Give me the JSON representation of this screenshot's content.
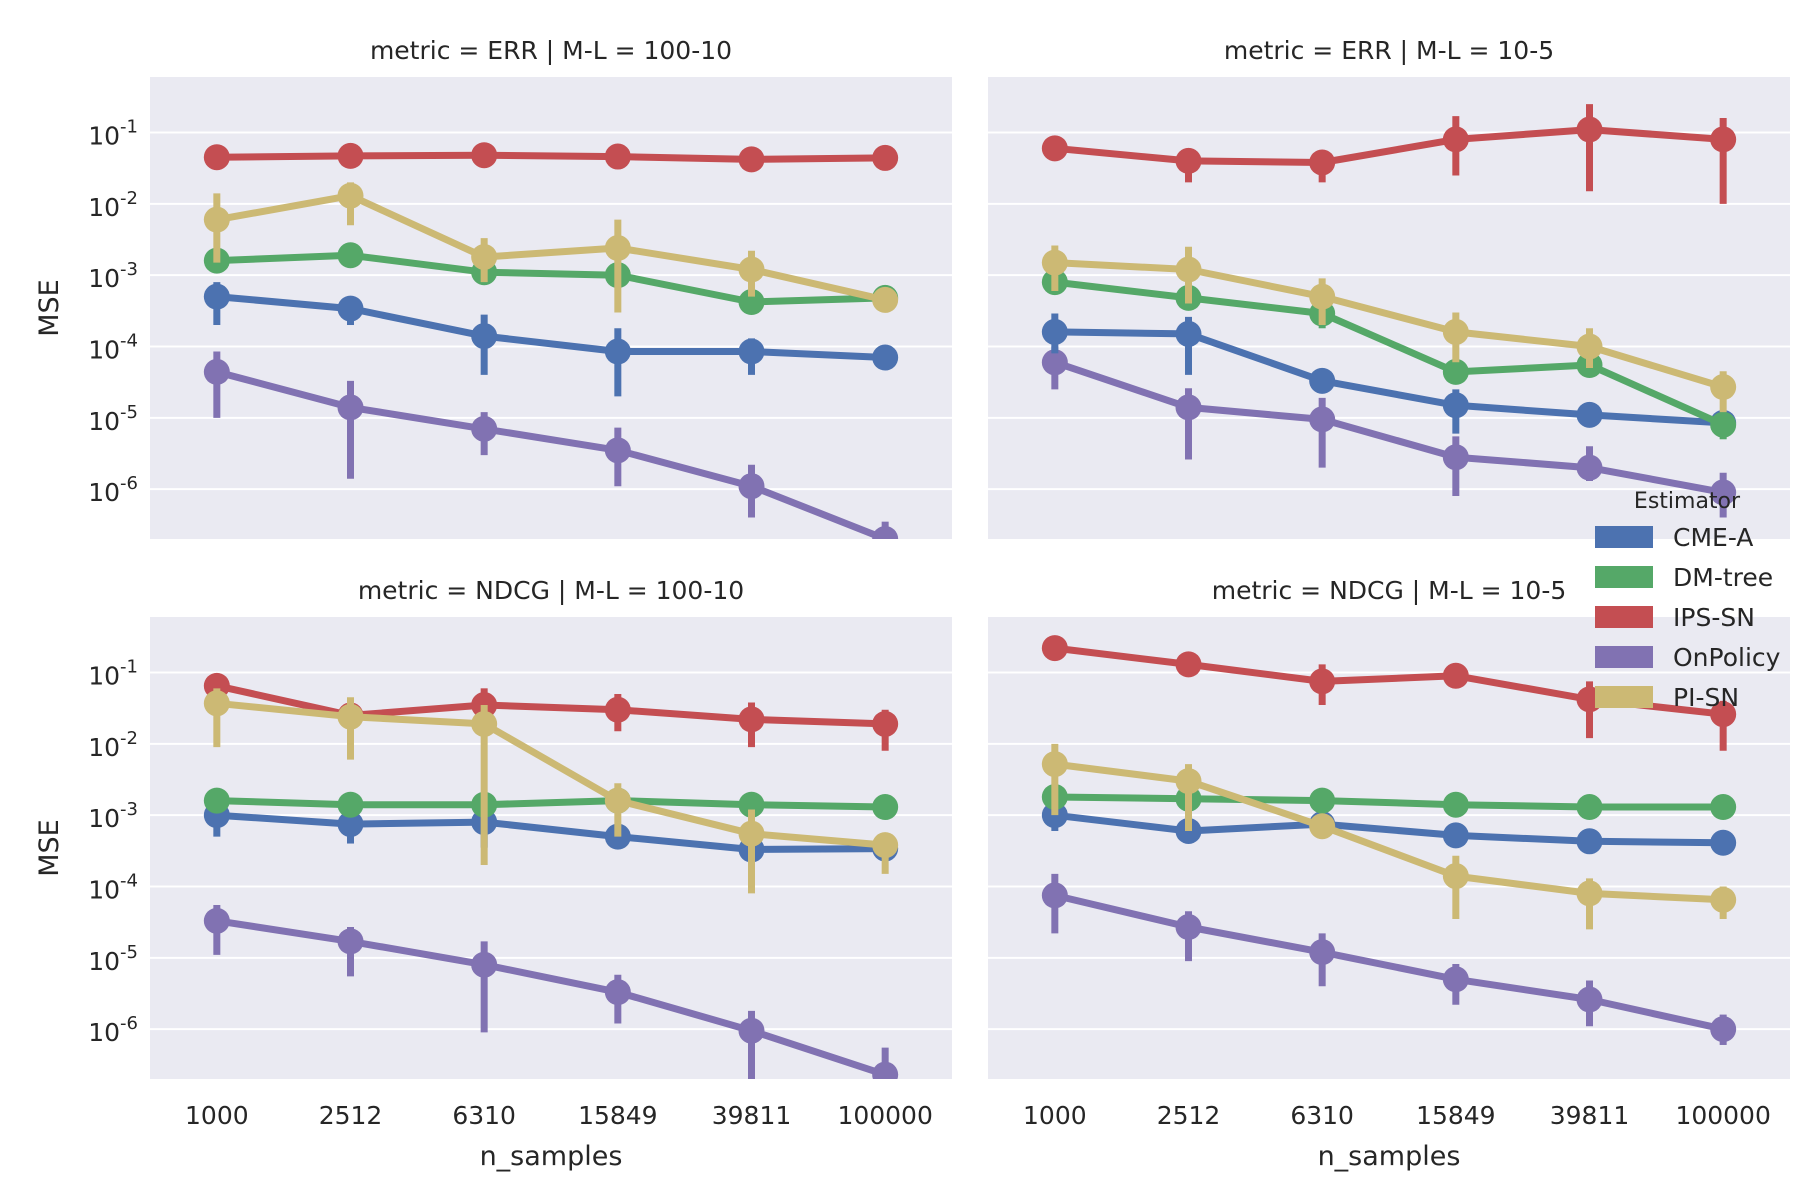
{
  "figure": {
    "ylabel": "MSE",
    "xlabel": "n_samples"
  },
  "legend": {
    "title": "Estimator",
    "entries": [
      {
        "name": "CME-A",
        "color": "#4c72b0"
      },
      {
        "name": "DM-tree",
        "color": "#55a868"
      },
      {
        "name": "IPS-SN",
        "color": "#c44e52"
      },
      {
        "name": "OnPolicy",
        "color": "#8172b2"
      },
      {
        "name": "PI-SN",
        "color": "#ccb974"
      }
    ]
  },
  "chart_data": [
    {
      "type": "line",
      "title": "metric = ERR | M-L = 100-10",
      "categories": [
        "1000",
        "2512",
        "6310",
        "15849",
        "39811",
        "100000"
      ],
      "ylabel": "MSE",
      "xlabel": "",
      "yscale": "log",
      "ylim": [
        2e-07,
        0.6
      ],
      "yticks": [
        "10^-1",
        "10^-2",
        "10^-3",
        "10^-4",
        "10^-5",
        "10^-6"
      ],
      "series": [
        {
          "name": "IPS-SN",
          "values": [
            0.045,
            0.047,
            0.048,
            0.046,
            0.042,
            0.044
          ],
          "err_low": [
            0.04,
            0.042,
            0.043,
            0.041,
            0.037,
            0.039
          ],
          "err_high": [
            0.05,
            0.052,
            0.053,
            0.051,
            0.047,
            0.049
          ]
        },
        {
          "name": "PI-SN",
          "values": [
            0.006,
            0.013,
            0.0018,
            0.0024,
            0.0012,
            0.00045
          ],
          "err_low": [
            0.0015,
            0.005,
            0.0008,
            0.0003,
            0.0005,
            0.0003
          ],
          "err_high": [
            0.014,
            0.02,
            0.0033,
            0.006,
            0.0022,
            0.0006
          ]
        },
        {
          "name": "DM-tree",
          "values": [
            0.0016,
            0.0019,
            0.0011,
            0.001,
            0.00042,
            0.00048
          ],
          "err_low": [
            0.0014,
            0.0017,
            0.001,
            0.0009,
            0.00038,
            0.00044
          ],
          "err_high": [
            0.0018,
            0.0021,
            0.0012,
            0.0011,
            0.00046,
            0.00052
          ]
        },
        {
          "name": "CME-A",
          "values": [
            0.0005,
            0.00034,
            0.00014,
            8.5e-05,
            8.5e-05,
            7e-05
          ],
          "err_low": [
            0.0002,
            0.0002,
            4e-05,
            2e-05,
            4e-05,
            6e-05
          ],
          "err_high": [
            0.0008,
            0.0005,
            0.00028,
            0.00018,
            0.00013,
            8e-05
          ]
        },
        {
          "name": "OnPolicy",
          "values": [
            4.4e-05,
            1.4e-05,
            7e-06,
            3.5e-06,
            1.1e-06,
            2e-07
          ],
          "err_low": [
            1e-05,
            1.4e-06,
            3e-06,
            1.1e-06,
            4e-07,
            1.5e-07
          ],
          "err_high": [
            8.5e-05,
            3.3e-05,
            1.2e-05,
            7.3e-06,
            2.2e-06,
            3.5e-07
          ]
        }
      ]
    },
    {
      "type": "line",
      "title": "metric = ERR | M-L = 10-5",
      "categories": [
        "1000",
        "2512",
        "6310",
        "15849",
        "39811",
        "100000"
      ],
      "ylabel": "",
      "xlabel": "",
      "yscale": "log",
      "ylim": [
        2e-07,
        0.6
      ],
      "yticks": [],
      "series": [
        {
          "name": "IPS-SN",
          "values": [
            0.06,
            0.04,
            0.038,
            0.08,
            0.11,
            0.08
          ],
          "err_low": [
            0.05,
            0.02,
            0.02,
            0.025,
            0.015,
            0.01
          ],
          "err_high": [
            0.07,
            0.055,
            0.05,
            0.17,
            0.25,
            0.16
          ]
        },
        {
          "name": "PI-SN",
          "values": [
            0.0015,
            0.0012,
            0.0005,
            0.00016,
            0.0001,
            2.7e-05
          ],
          "err_low": [
            0.0006,
            0.0004,
            0.0002,
            6e-05,
            5e-05,
            1.2e-05
          ],
          "err_high": [
            0.0026,
            0.0025,
            0.0009,
            0.0003,
            0.00018,
            4.5e-05
          ]
        },
        {
          "name": "DM-tree",
          "values": [
            0.0008,
            0.00048,
            0.00029,
            4.4e-05,
            5.5e-05,
            8e-06
          ],
          "err_low": [
            0.0006,
            0.0004,
            0.00018,
            3.5e-05,
            4.5e-05,
            5e-06
          ],
          "err_high": [
            0.001,
            0.00056,
            0.0004,
            5.4e-05,
            6.5e-05,
            1.1e-05
          ]
        },
        {
          "name": "CME-A",
          "values": [
            0.00016,
            0.00015,
            3.3e-05,
            1.5e-05,
            1.1e-05,
            8.5e-06
          ],
          "err_low": [
            8e-05,
            4e-05,
            2.5e-05,
            6e-06,
            8e-06,
            7e-06
          ],
          "err_high": [
            0.00029,
            0.00026,
            4e-05,
            2.5e-05,
            1.4e-05,
            1e-05
          ]
        },
        {
          "name": "OnPolicy",
          "values": [
            6e-05,
            1.4e-05,
            9.5e-06,
            2.8e-06,
            2e-06,
            9e-07
          ],
          "err_low": [
            2.5e-05,
            2.6e-06,
            2e-06,
            8e-07,
            1.3e-06,
            4e-07
          ],
          "err_high": [
            0.0001,
            2.6e-05,
            1.9e-05,
            5.5e-06,
            4e-06,
            1.7e-06
          ]
        }
      ]
    },
    {
      "type": "line",
      "title": "metric = NDCG | M-L = 100-10",
      "categories": [
        "1000",
        "2512",
        "6310",
        "15849",
        "39811",
        "100000"
      ],
      "ylabel": "MSE",
      "xlabel": "n_samples",
      "yscale": "log",
      "ylim": [
        2e-07,
        0.6
      ],
      "yticks": [
        "10^-1",
        "10^-2",
        "10^-3",
        "10^-4",
        "10^-5",
        "10^-6"
      ],
      "series": [
        {
          "name": "IPS-SN",
          "values": [
            0.065,
            0.025,
            0.035,
            0.03,
            0.022,
            0.019
          ],
          "err_low": [
            0.045,
            0.02,
            0.022,
            0.015,
            0.009,
            0.008
          ],
          "err_high": [
            0.09,
            0.03,
            0.06,
            0.05,
            0.038,
            0.03
          ]
        },
        {
          "name": "PI-SN",
          "values": [
            0.037,
            0.024,
            0.019,
            0.0016,
            0.00055,
            0.00038
          ],
          "err_low": [
            0.009,
            0.006,
            0.0002,
            0.0005,
            8e-05,
            0.00015
          ],
          "err_high": [
            0.06,
            0.045,
            0.035,
            0.0028,
            0.0012,
            0.00055
          ]
        },
        {
          "name": "DM-tree",
          "values": [
            0.0016,
            0.0014,
            0.0014,
            0.0016,
            0.0014,
            0.0013
          ],
          "err_low": [
            0.00145,
            0.00125,
            0.00125,
            0.00145,
            0.00125,
            0.00115
          ],
          "err_high": [
            0.00175,
            0.00155,
            0.00155,
            0.00175,
            0.00155,
            0.00145
          ]
        },
        {
          "name": "CME-A",
          "values": [
            0.001,
            0.00075,
            0.0008,
            0.0005,
            0.00033,
            0.00034
          ],
          "err_low": [
            0.0005,
            0.0004,
            0.00035,
            0.00035,
            0.00025,
            0.0003
          ],
          "err_high": [
            0.0013,
            0.00095,
            0.0011,
            0.00065,
            0.00045,
            0.00038
          ]
        },
        {
          "name": "OnPolicy",
          "values": [
            3.3e-05,
            1.7e-05,
            8e-06,
            3.3e-06,
            9.5e-07,
            2.3e-07
          ],
          "err_low": [
            1.1e-05,
            5.5e-06,
            9e-07,
            1.2e-06,
            2e-07,
            1.5e-07
          ],
          "err_high": [
            5.5e-05,
            2.7e-05,
            1.7e-05,
            5.8e-06,
            1.8e-06,
            5.5e-07
          ]
        }
      ]
    },
    {
      "type": "line",
      "title": "metric = NDCG | M-L = 10-5",
      "categories": [
        "1000",
        "2512",
        "6310",
        "15849",
        "39811",
        "100000"
      ],
      "ylabel": "",
      "xlabel": "n_samples",
      "yscale": "log",
      "ylim": [
        2e-07,
        0.6
      ],
      "yticks": [],
      "series": [
        {
          "name": "IPS-SN",
          "values": [
            0.22,
            0.13,
            0.075,
            0.09,
            0.042,
            0.026
          ],
          "err_low": [
            0.18,
            0.1,
            0.035,
            0.06,
            0.012,
            0.008
          ],
          "err_high": [
            0.26,
            0.16,
            0.13,
            0.13,
            0.075,
            0.04
          ]
        },
        {
          "name": "PI-SN",
          "values": [
            0.0052,
            0.003,
            0.0007,
            0.00014,
            8e-05,
            6.5e-05
          ],
          "err_low": [
            0.001,
            0.0006,
            0.0005,
            3.5e-05,
            2.5e-05,
            3.5e-05
          ],
          "err_high": [
            0.01,
            0.0052,
            0.0009,
            0.00027,
            0.00013,
            0.0001
          ]
        },
        {
          "name": "DM-tree",
          "values": [
            0.0018,
            0.0017,
            0.0016,
            0.0014,
            0.0013,
            0.0013
          ],
          "err_low": [
            0.00165,
            0.00155,
            0.00145,
            0.00125,
            0.00115,
            0.00115
          ],
          "err_high": [
            0.00195,
            0.00185,
            0.00175,
            0.00155,
            0.00145,
            0.00145
          ]
        },
        {
          "name": "CME-A",
          "values": [
            0.001,
            0.0006,
            0.00075,
            0.00052,
            0.00043,
            0.00041
          ],
          "err_low": [
            0.0006,
            0.0004,
            0.0006,
            0.00045,
            0.0004,
            0.00039
          ],
          "err_high": [
            0.0013,
            0.00075,
            0.00085,
            0.0006,
            0.00047,
            0.00044
          ]
        },
        {
          "name": "OnPolicy",
          "values": [
            7.5e-05,
            2.7e-05,
            1.2e-05,
            5e-06,
            2.6e-06,
            1e-06
          ],
          "err_low": [
            2.2e-05,
            9e-06,
            4e-06,
            2.2e-06,
            1.1e-06,
            6e-07
          ],
          "err_high": [
            0.00015,
            4.5e-05,
            2.2e-05,
            8.2e-06,
            4.8e-06,
            1.6e-06
          ]
        }
      ]
    }
  ]
}
